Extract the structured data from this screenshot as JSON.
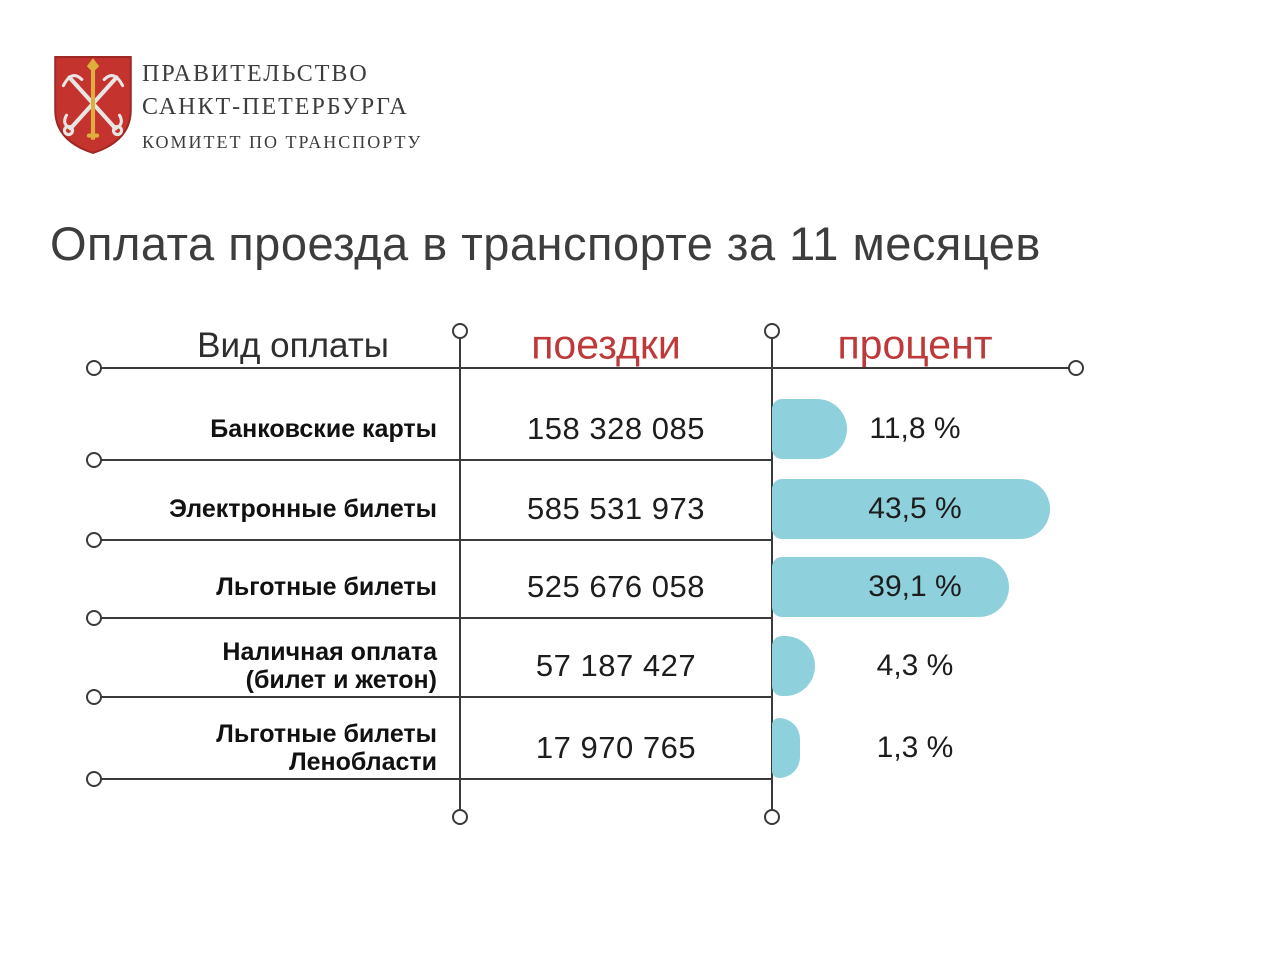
{
  "header": {
    "org_line1": "ПРАВИТЕЛЬСТВО",
    "org_line2": "САНКТ-ПЕТЕРБУРГА",
    "org_line3": "КОМИТЕТ ПО ТРАНСПОРТУ"
  },
  "title": "Оплата проезда в транспорте за 11 месяцев",
  "chart_data": {
    "type": "bar",
    "orientation": "horizontal",
    "title": "Оплата проезда в транспорте за 11 месяцев",
    "column_headers": [
      "Вид оплаты",
      "поездки",
      "процент"
    ],
    "categories": [
      "Банковские карты",
      "Электронные билеты",
      "Льготные билеты",
      "Наличная оплата (билет и жетон)",
      "Льготные билеты Ленобласти"
    ],
    "series": [
      {
        "name": "поездки",
        "values": [
          158328085,
          585531973,
          525676058,
          57187427,
          17970765
        ]
      },
      {
        "name": "процент",
        "values": [
          11.8,
          43.5,
          39.1,
          4.3,
          1.3
        ]
      }
    ],
    "rows": [
      {
        "label_lines": [
          "Банковские карты"
        ],
        "trips": "158 328 085",
        "percent": "11,8 %"
      },
      {
        "label_lines": [
          "Электронные билеты"
        ],
        "trips": "585 531 973",
        "percent": "43,5 %"
      },
      {
        "label_lines": [
          "Льготные билеты"
        ],
        "trips": "525 676 058",
        "percent": "39,1 %"
      },
      {
        "label_lines": [
          "Наличная оплата",
          "(билет и жетон)"
        ],
        "trips": "57 187 427",
        "percent": "4,3 %"
      },
      {
        "label_lines": [
          "Льготные билеты",
          "Ленобласти"
        ],
        "trips": "17 970 765",
        "percent": "1,3 %"
      }
    ],
    "xlim_percent": [
      0,
      45
    ],
    "legend": "none",
    "grid": "off",
    "bar_color": "#8fd0dd"
  },
  "colors": {
    "accent_red": "#c0393a",
    "bar_blue": "#8fd0dd",
    "line_dark": "#3a3a3a",
    "shield_red": "#c5332f",
    "shield_border": "#9e2824",
    "gold": "#dfaf3e",
    "silver": "#e8e6e2"
  }
}
